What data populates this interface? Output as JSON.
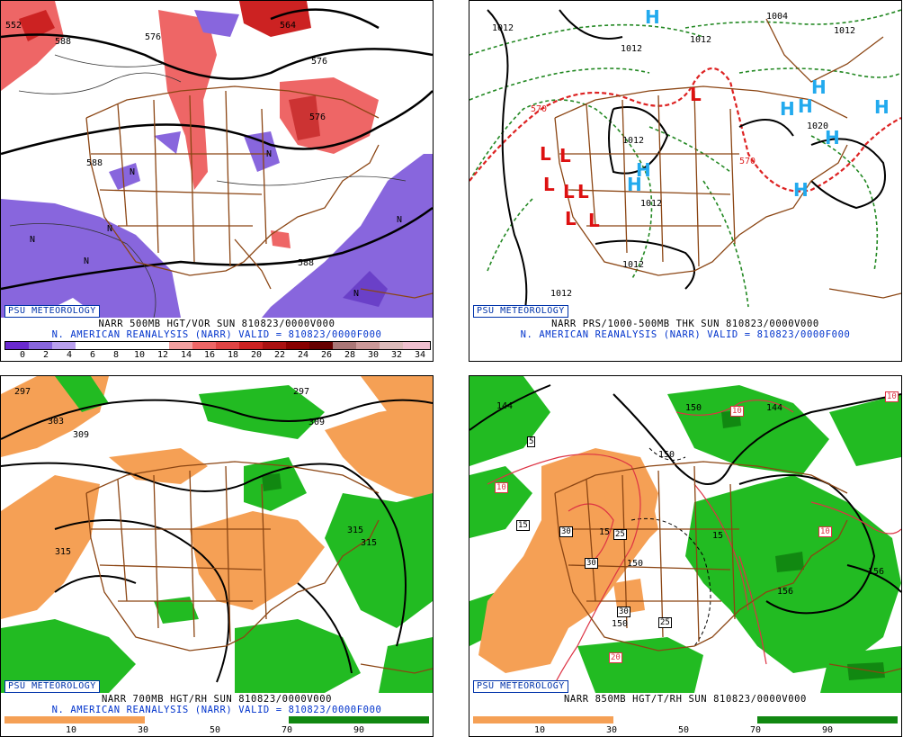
{
  "panels": [
    {
      "logo": "PSU METEOROLOGY",
      "caption1": "NARR 500MB HGT/VOR SUN 810823/0000V000",
      "caption2": "N. AMERICAN REANALYSIS (NARR) VALID = 810823/0000F000",
      "scale_labels": [
        "0",
        "2",
        "4",
        "6",
        "8",
        "10",
        "12",
        "14",
        "16",
        "18",
        "20",
        "22",
        "24",
        "26",
        "28",
        "30",
        "32",
        "34"
      ],
      "contour_labels": [
        "552",
        "564",
        "576",
        "576",
        "576",
        "588",
        "588",
        "588"
      ],
      "center_markers": [
        "N",
        "N",
        "N",
        "N",
        "N",
        "N",
        "N"
      ]
    },
    {
      "logo": "PSU METEOROLOGY",
      "caption1": "NARR PRS/1000-500MB THK SUN 810823/0000V000",
      "caption2": "N. AMERICAN REANALYSIS (NARR) VALID = 810823/0000F000",
      "contour_labels": [
        "1012",
        "1004",
        "1012",
        "1012",
        "1012",
        "1012",
        "1012",
        "1012",
        "1012",
        "1020",
        "570",
        "570"
      ],
      "high_markers": [
        "H",
        "H",
        "H",
        "H",
        "H",
        "H",
        "H",
        "H",
        "H"
      ],
      "low_markers": [
        "L",
        "L",
        "L",
        "L",
        "L",
        "L",
        "L",
        "L"
      ]
    },
    {
      "logo": "PSU METEOROLOGY",
      "caption1": "NARR 700MB HGT/RH SUN 810823/0000V000",
      "caption2": "N. AMERICAN REANALYSIS (NARR) VALID = 810823/0000F000",
      "scale_labels": [
        "10",
        "30",
        "50",
        "70",
        "90"
      ],
      "contour_labels": [
        "297",
        "297",
        "303",
        "309",
        "309",
        "315",
        "315",
        "315"
      ]
    },
    {
      "logo": "PSU METEOROLOGY",
      "caption1": "NARR 850MB HGT/T/RH SUN 810823/0000V000",
      "scale_labels": [
        "10",
        "30",
        "50",
        "70",
        "90"
      ],
      "contour_labels": [
        "144",
        "150",
        "144",
        "150",
        "15",
        "150",
        "15",
        "15",
        "150",
        "156",
        "156"
      ],
      "temp_labels": [
        "10",
        "10",
        "5",
        "10",
        "15",
        "30",
        "30",
        "25",
        "30",
        "25",
        "20",
        "10"
      ]
    }
  ],
  "colors": {
    "vorticity_purple": "#8866dd",
    "vorticity_red": "#ee6666",
    "rh_orange": "#f5a055",
    "rh_green": "#22bb22",
    "map_brown": "#8b4513",
    "high_blue": "#22aaee",
    "low_red": "#dd1111",
    "thickness_red": "#dd2222",
    "pressure_green": "#228822"
  }
}
